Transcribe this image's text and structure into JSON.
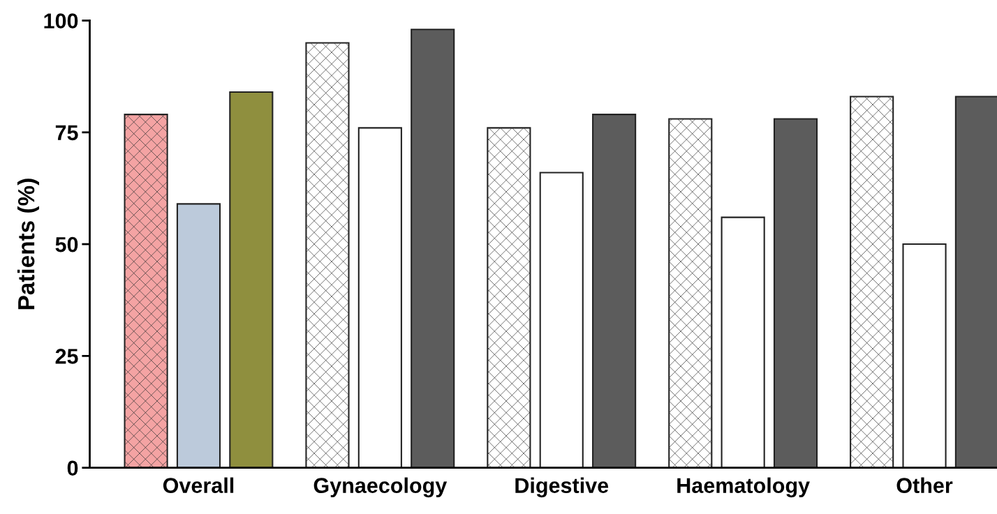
{
  "chart_data": {
    "type": "bar",
    "ylabel": "Patients (%)",
    "categories": [
      "Overall",
      "Gynaecology",
      "Digestive",
      "Haematology",
      "Other"
    ],
    "series": [
      {
        "colors": [
          "#f4a3a3",
          "#ffffff",
          "#ffffff",
          "#ffffff",
          "#ffffff"
        ],
        "values": [
          79,
          95,
          76,
          78,
          83
        ]
      },
      {
        "colors": [
          "#bccadb",
          "#ffffff",
          "#ffffff",
          "#ffffff",
          "#ffffff"
        ],
        "values": [
          59,
          76,
          66,
          56,
          50
        ]
      },
      {
        "colors": [
          "#8f8f3e",
          "#5c5c5c",
          "#5c5c5c",
          "#5c5c5c",
          "#5c5c5c"
        ],
        "values": [
          84,
          98,
          79,
          78,
          83
        ]
      }
    ],
    "ylim": [
      0,
      100
    ],
    "yticks": [
      0,
      25,
      50,
      75,
      100
    ],
    "grid": false,
    "legend": false
  }
}
